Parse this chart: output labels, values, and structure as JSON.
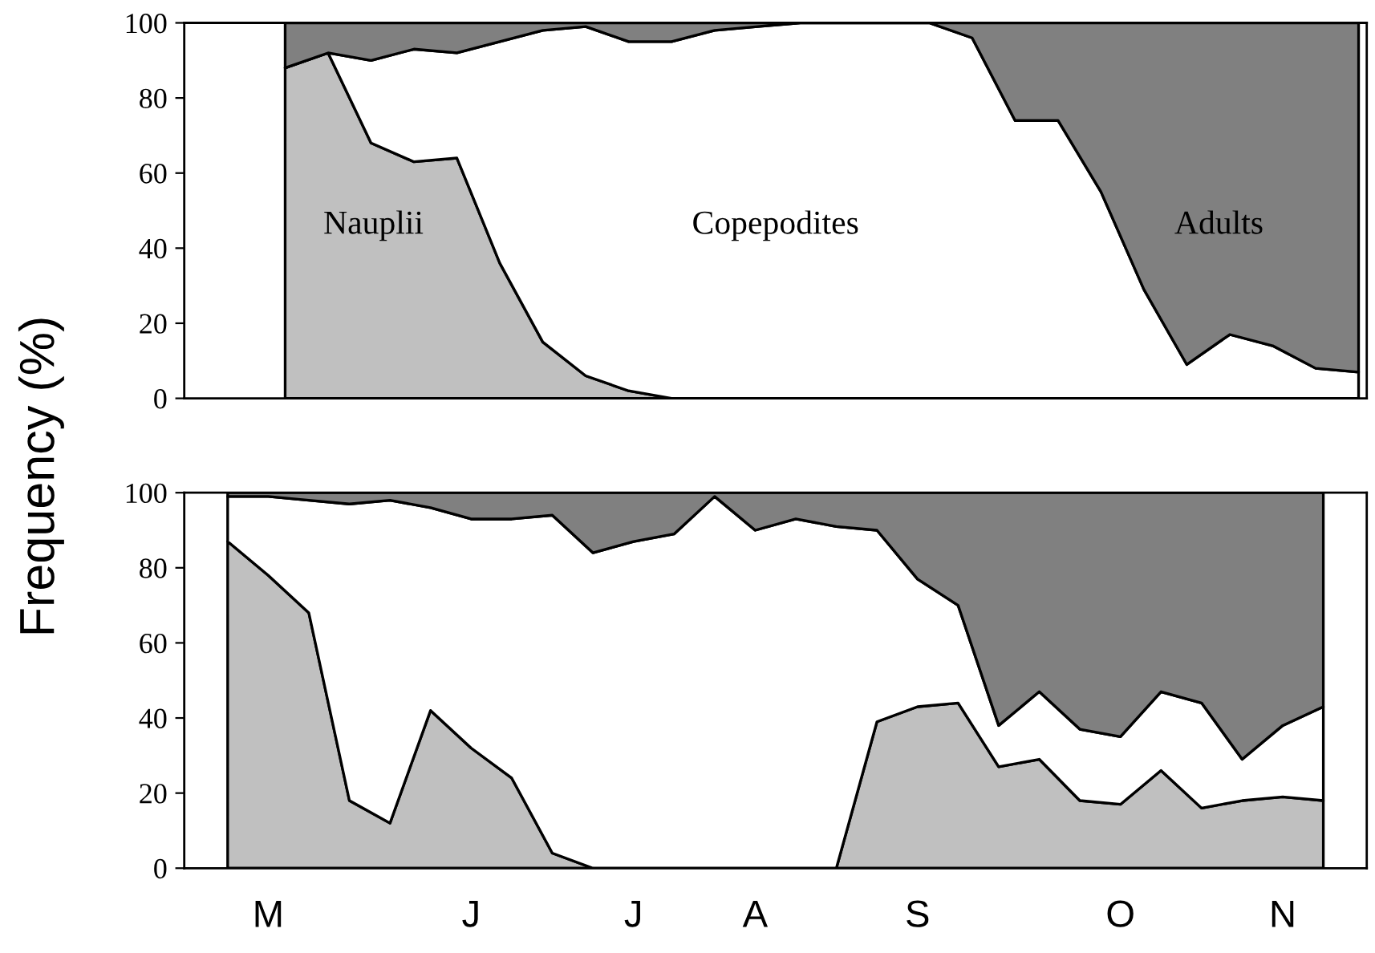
{
  "chart_data": [
    {
      "type": "area",
      "stacked": true,
      "ylabel": "Frequency (%)",
      "ylim": [
        0,
        100
      ],
      "yticks": [
        0,
        20,
        40,
        60,
        80,
        100
      ],
      "tick_labels": "y",
      "grid": false,
      "legend": false,
      "categories": [
        null,
        null,
        null,
        null,
        null,
        null,
        null,
        null,
        null,
        null,
        null,
        null,
        null,
        null,
        null,
        null,
        null,
        null,
        null,
        null,
        null,
        null,
        null,
        null,
        null,
        null
      ],
      "series": [
        {
          "name": "Nauplii",
          "color": "#c0c0c0",
          "values": [
            88,
            92,
            68,
            63,
            64,
            36,
            15,
            6,
            2,
            0,
            0,
            0,
            0,
            0,
            0,
            0,
            0,
            0,
            0,
            0,
            0,
            0,
            0,
            0,
            0,
            0
          ]
        },
        {
          "name": "Copepodites",
          "color": "#ffffff",
          "values": [
            0,
            0,
            22,
            30,
            28,
            59,
            83,
            93,
            93,
            95,
            98,
            99,
            100,
            100,
            100,
            100,
            96,
            74,
            74,
            55,
            29,
            9,
            17,
            14,
            8,
            7
          ]
        },
        {
          "name": "Adults",
          "color": "#808080",
          "values": [
            12,
            8,
            10,
            7,
            8,
            5,
            2,
            1,
            5,
            5,
            2,
            1,
            0,
            0,
            0,
            0,
            4,
            26,
            26,
            45,
            71,
            91,
            83,
            86,
            92,
            93
          ]
        }
      ]
    },
    {
      "type": "area",
      "stacked": true,
      "ylim": [
        0,
        100
      ],
      "yticks": [
        0,
        20,
        40,
        60,
        80,
        100
      ],
      "grid": false,
      "legend": false,
      "categories": [
        null,
        "M",
        null,
        null,
        null,
        null,
        "J",
        null,
        null,
        null,
        "J",
        null,
        null,
        "A",
        null,
        null,
        null,
        "S",
        null,
        null,
        null,
        null,
        "O",
        null,
        null,
        null,
        "N",
        null
      ],
      "series": [
        {
          "color": "#c0c0c0",
          "values": [
            87,
            78,
            68,
            18,
            12,
            42,
            32,
            24,
            4,
            0,
            0,
            0,
            0,
            0,
            0,
            0,
            39,
            43,
            44,
            27,
            29,
            18,
            17,
            26,
            16,
            18,
            19,
            18
          ]
        },
        {
          "color": "#ffffff",
          "values": [
            12,
            21,
            30,
            79,
            86,
            54,
            61,
            69,
            90,
            84,
            87,
            89,
            99,
            90,
            93,
            91,
            51,
            34,
            26,
            11,
            18,
            19,
            18,
            21,
            28,
            11,
            19,
            25
          ]
        },
        {
          "color": "#808080",
          "values": [
            1,
            1,
            2,
            3,
            2,
            4,
            7,
            7,
            6,
            16,
            13,
            11,
            1,
            10,
            7,
            9,
            10,
            23,
            30,
            62,
            53,
            63,
            65,
            53,
            56,
            71,
            62,
            57
          ]
        }
      ]
    }
  ]
}
